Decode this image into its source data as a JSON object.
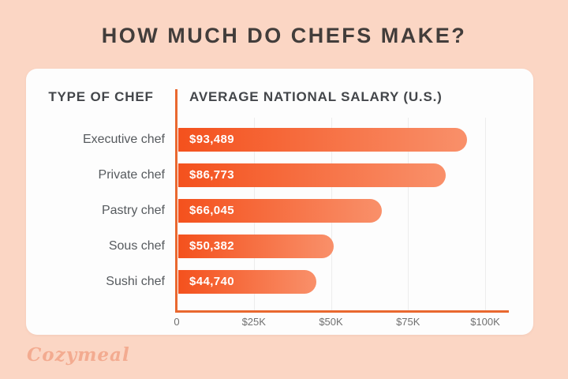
{
  "title": "HOW MUCH DO CHEFS MAKE?",
  "brand": {
    "logo_text": "Cozymeal"
  },
  "table_headers": {
    "left": "TYPE OF CHEF",
    "right": "AVERAGE NATIONAL SALARY (U.S.)"
  },
  "chart_data": {
    "type": "bar",
    "orientation": "horizontal",
    "title": "HOW MUCH DO CHEFS MAKE?",
    "categories": [
      "Executive chef",
      "Private chef",
      "Pastry chef",
      "Sous chef",
      "Sushi chef"
    ],
    "values": [
      93489,
      86773,
      66045,
      50382,
      44740
    ],
    "value_labels": [
      "$93,489",
      "$86,773",
      "$66,045",
      "$50,382",
      "$44,740"
    ],
    "x_ticks": [
      "0",
      "$25K",
      "$50K",
      "$75K",
      "$100K"
    ],
    "x_tick_values": [
      0,
      25000,
      50000,
      75000,
      100000
    ],
    "xlim": [
      0,
      100000
    ],
    "grid": true,
    "legend": "none"
  },
  "colors": {
    "background": "#fbd6c4",
    "card": "#fdfdfd",
    "bar_gradient_start": "#f4511d",
    "bar_gradient_end": "#f9906a",
    "axis_line": "#e9682f",
    "gridline": "#ededed",
    "title_text": "#423d3b",
    "header_text": "#43464a",
    "label_text": "#565a5e",
    "tick_text": "#707070",
    "value_text": "#ffffff",
    "logo_text": "#f3ab90"
  }
}
